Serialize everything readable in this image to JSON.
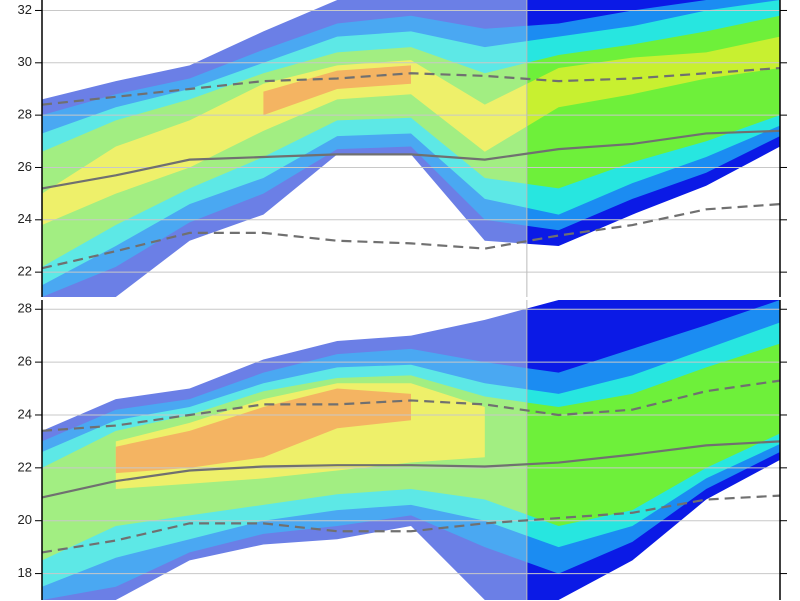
{
  "chart_data": [
    {
      "type": "contour",
      "x": [
        0,
        1,
        2,
        3,
        4,
        5,
        6,
        7,
        8,
        9,
        10
      ],
      "xlim": [
        0,
        10
      ],
      "ylim": [
        21.05,
        32.4
      ],
      "yticks": [
        22,
        24,
        26,
        28,
        30,
        32
      ],
      "grid": true,
      "divider": 6.57,
      "bands": [
        {
          "color": "#6b7fe6",
          "color_right": "#0b1ae6",
          "upper": [
            28.6,
            29.3,
            29.9,
            31.2,
            32.4,
            32.4,
            32.4,
            32.4,
            32.4,
            32.4,
            32.4
          ],
          "lower": [
            21.05,
            21.05,
            23.2,
            24.2,
            26.5,
            26.5,
            23.2,
            23.0,
            24.2,
            25.3,
            26.8
          ]
        },
        {
          "color": "#4aa8f2",
          "color_right": "#1b8cf2",
          "upper": [
            28.0,
            28.8,
            29.4,
            30.5,
            31.5,
            31.8,
            31.3,
            31.5,
            32.0,
            32.4,
            32.4
          ],
          "lower": [
            21.05,
            22.2,
            23.9,
            25.0,
            26.7,
            26.8,
            24.0,
            23.6,
            24.8,
            25.8,
            27.2
          ]
        },
        {
          "color": "#5de8e6",
          "color_right": "#27e6e0",
          "upper": [
            27.3,
            28.3,
            29.0,
            30.0,
            31.0,
            31.2,
            30.6,
            31.0,
            31.4,
            32.0,
            32.4
          ],
          "lower": [
            21.5,
            23.0,
            24.6,
            25.6,
            27.2,
            27.3,
            24.8,
            24.2,
            25.4,
            26.4,
            27.6
          ]
        },
        {
          "color": "#a2ee82",
          "color_right": "#6ef03a",
          "upper": [
            26.6,
            27.8,
            28.6,
            29.6,
            30.4,
            30.6,
            29.6,
            30.3,
            30.7,
            31.2,
            31.8
          ],
          "lower": [
            22.2,
            23.8,
            25.2,
            26.4,
            27.8,
            27.9,
            25.6,
            25.2,
            26.2,
            27.0,
            28.0
          ]
        },
        {
          "color": "#eef06a",
          "color_right": "#c8f030",
          "upper": [
            25.0,
            26.8,
            27.8,
            29.2,
            29.9,
            30.1,
            28.4,
            29.8,
            30.2,
            30.4,
            31.0
          ],
          "lower": [
            23.8,
            25.0,
            26.0,
            27.4,
            28.6,
            28.8,
            26.6,
            28.3,
            28.8,
            29.4,
            29.8
          ]
        },
        {
          "color": "#f4b462",
          "color_right": "#eaf02a",
          "upper": [
            null,
            null,
            null,
            28.9,
            29.7,
            29.9,
            null,
            null,
            null,
            null,
            null
          ],
          "lower": [
            null,
            null,
            null,
            28.0,
            29.0,
            29.2,
            null,
            null,
            null,
            null,
            null
          ]
        }
      ],
      "series": [
        {
          "color": "#707070",
          "dash": false,
          "values": [
            25.2,
            25.7,
            26.3,
            26.4,
            26.5,
            26.5,
            26.3,
            26.7,
            26.9,
            27.3,
            27.4
          ]
        },
        {
          "color": "#707070",
          "dash": true,
          "values": [
            28.4,
            28.7,
            29.0,
            29.3,
            29.4,
            29.6,
            29.5,
            29.3,
            29.4,
            29.6,
            29.8
          ]
        },
        {
          "color": "#707070",
          "dash": true,
          "values": [
            22.15,
            22.8,
            23.5,
            23.5,
            23.2,
            23.1,
            22.9,
            23.4,
            23.8,
            24.4,
            24.6
          ]
        }
      ]
    },
    {
      "type": "contour",
      "x": [
        0,
        1,
        2,
        3,
        4,
        5,
        6,
        7,
        8,
        9,
        10
      ],
      "xlim": [
        0,
        10
      ],
      "ylim": [
        17,
        28.35
      ],
      "yticks": [
        18,
        20,
        22,
        24,
        26,
        28
      ],
      "grid": true,
      "divider": 6.57,
      "bands": [
        {
          "color": "#6b7fe6",
          "color_right": "#0b1ae6",
          "upper": [
            23.4,
            24.6,
            25.0,
            26.1,
            26.8,
            27.0,
            27.6,
            28.35,
            28.35,
            28.35,
            28.35
          ],
          "lower": [
            17,
            17,
            18.5,
            19.1,
            19.3,
            19.8,
            17,
            17,
            18.5,
            20.8,
            22.3
          ]
        },
        {
          "color": "#4aa8f2",
          "color_right": "#1b8cf2",
          "upper": [
            23.0,
            24.2,
            24.6,
            25.6,
            26.3,
            26.5,
            26.0,
            25.6,
            26.5,
            27.4,
            28.35
          ],
          "lower": [
            17,
            17.5,
            18.8,
            19.5,
            19.8,
            20.2,
            19.0,
            18.0,
            19.2,
            21.2,
            22.6
          ]
        },
        {
          "color": "#5de8e6",
          "color_right": "#27e6e0",
          "upper": [
            22.6,
            23.8,
            24.3,
            25.2,
            25.8,
            25.9,
            25.2,
            24.8,
            25.5,
            26.5,
            27.5
          ],
          "lower": [
            17.5,
            18.6,
            19.3,
            20.0,
            20.4,
            20.6,
            20.0,
            19.0,
            19.8,
            21.6,
            22.9
          ]
        },
        {
          "color": "#a2ee82",
          "color_right": "#6ef03a",
          "upper": [
            22.0,
            23.4,
            24.0,
            24.9,
            25.4,
            25.5,
            24.7,
            24.3,
            24.8,
            25.8,
            26.7
          ],
          "lower": [
            18.5,
            19.8,
            20.2,
            20.6,
            21.0,
            21.2,
            20.8,
            19.8,
            20.4,
            22.0,
            23.3
          ]
        },
        {
          "color": "#eef06a",
          "color_right": "#c8f030",
          "upper": [
            null,
            23.0,
            23.7,
            24.6,
            25.2,
            25.2,
            24.3,
            null,
            null,
            null,
            null
          ],
          "lower": [
            null,
            21.2,
            21.4,
            21.6,
            21.9,
            22.2,
            22.4,
            null,
            null,
            null,
            null
          ]
        },
        {
          "color": "#f4b462",
          "color_right": "#eaf02a",
          "upper": [
            null,
            22.8,
            23.4,
            24.3,
            25.0,
            24.8,
            null,
            null,
            null,
            null,
            null
          ],
          "lower": [
            null,
            21.8,
            22.0,
            22.4,
            23.5,
            23.8,
            null,
            null,
            null,
            null,
            null
          ]
        }
      ],
      "series": [
        {
          "color": "#707070",
          "dash": false,
          "values": [
            20.88,
            21.5,
            21.9,
            22.05,
            22.1,
            22.1,
            22.05,
            22.2,
            22.5,
            22.85,
            23.0
          ]
        },
        {
          "color": "#707070",
          "dash": true,
          "values": [
            23.4,
            23.6,
            24.0,
            24.4,
            24.4,
            24.55,
            24.4,
            24.0,
            24.2,
            24.9,
            25.3
          ]
        },
        {
          "color": "#707070",
          "dash": true,
          "values": [
            18.8,
            19.25,
            19.9,
            19.9,
            19.6,
            19.6,
            19.9,
            20.1,
            20.3,
            20.8,
            20.95
          ]
        }
      ]
    }
  ]
}
